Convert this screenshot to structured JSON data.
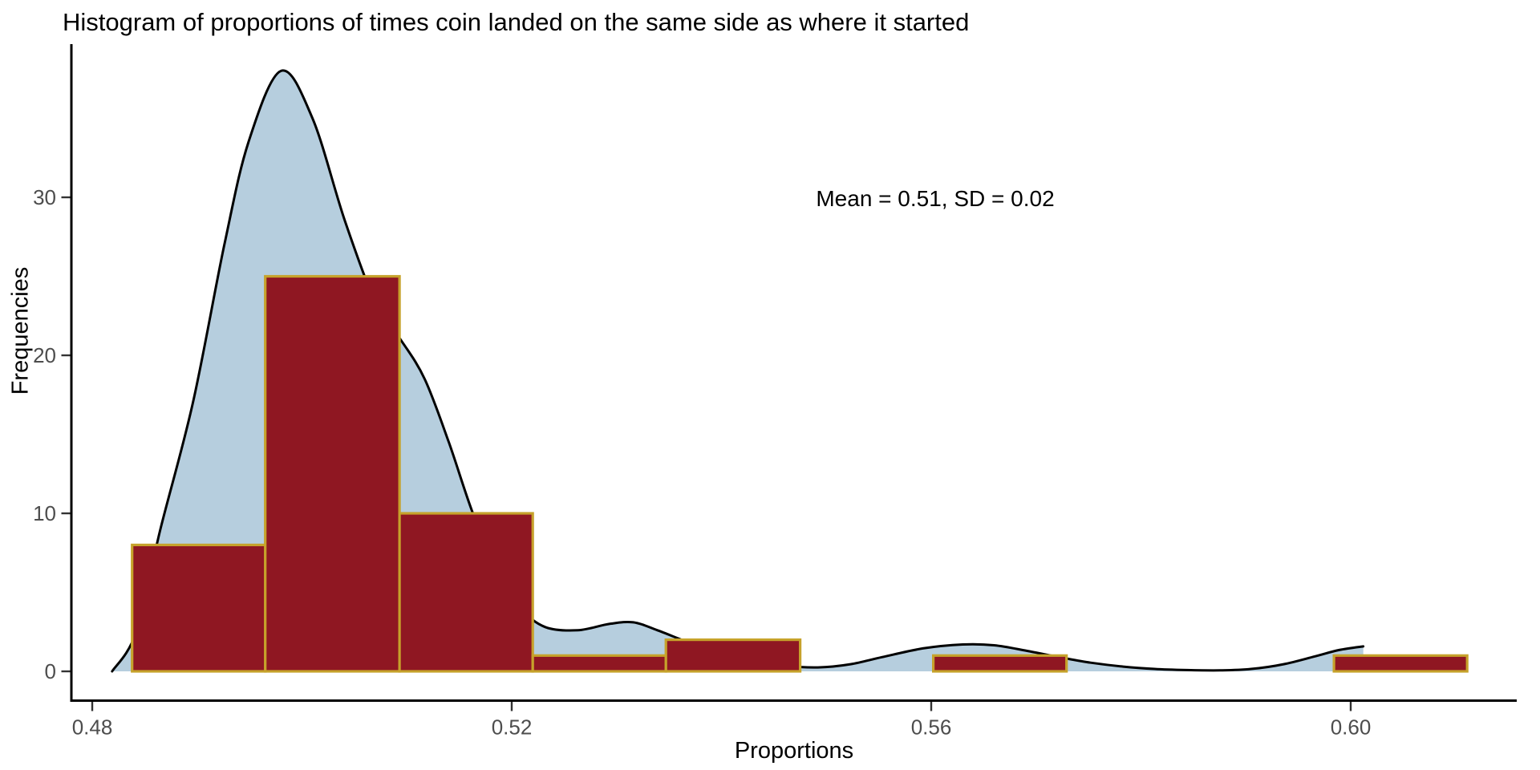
{
  "chart_data": {
    "type": "histogram",
    "title": "Histogram of proportions of times coin landed on the same side as where it started",
    "xlabel": "Proportions",
    "ylabel": "Frequencies",
    "annotation": "Mean = 0.51, SD = 0.02",
    "x_ticks": [
      {
        "value": 0.48,
        "label": "0.48"
      },
      {
        "value": 0.52,
        "label": "0.52"
      },
      {
        "value": 0.56,
        "label": "0.56"
      },
      {
        "value": 0.6,
        "label": "0.60"
      }
    ],
    "y_ticks": [
      {
        "value": 0,
        "label": "0"
      },
      {
        "value": 10,
        "label": "10"
      },
      {
        "value": 20,
        "label": "20"
      },
      {
        "value": 30,
        "label": "30"
      }
    ],
    "xlim": [
      0.478,
      0.616
    ],
    "ylim": [
      0,
      39.5
    ],
    "grid": "off",
    "legend": "none",
    "bins": {
      "edges": [
        0.4838,
        0.4965,
        0.5093,
        0.522,
        0.5347,
        0.5475,
        0.5602,
        0.5729,
        0.5857,
        0.5984,
        0.6111
      ],
      "counts": [
        8,
        25,
        10,
        1,
        2,
        0,
        1,
        0,
        0,
        1
      ]
    },
    "density_curve": [
      [
        0.4819,
        0.0
      ],
      [
        0.4842,
        2.5
      ],
      [
        0.4865,
        9.0
      ],
      [
        0.4896,
        17.0
      ],
      [
        0.4926,
        27.0
      ],
      [
        0.4949,
        33.5
      ],
      [
        0.498,
        38.0
      ],
      [
        0.501,
        35.0
      ],
      [
        0.5041,
        28.5
      ],
      [
        0.5072,
        23.0
      ],
      [
        0.5094,
        21.0
      ],
      [
        0.5117,
        18.5
      ],
      [
        0.514,
        14.5
      ],
      [
        0.5163,
        10.0
      ],
      [
        0.5186,
        6.5
      ],
      [
        0.5209,
        4.0
      ],
      [
        0.5232,
        2.8
      ],
      [
        0.5263,
        2.6
      ],
      [
        0.5293,
        3.0
      ],
      [
        0.5316,
        3.1
      ],
      [
        0.5339,
        2.6
      ],
      [
        0.537,
        1.8
      ],
      [
        0.54,
        1.2
      ],
      [
        0.5431,
        0.7
      ],
      [
        0.5462,
        0.35
      ],
      [
        0.5492,
        0.25
      ],
      [
        0.5523,
        0.45
      ],
      [
        0.5553,
        0.9
      ],
      [
        0.5592,
        1.45
      ],
      [
        0.563,
        1.7
      ],
      [
        0.566,
        1.65
      ],
      [
        0.5691,
        1.3
      ],
      [
        0.5722,
        0.9
      ],
      [
        0.5752,
        0.55
      ],
      [
        0.5783,
        0.3
      ],
      [
        0.5813,
        0.15
      ],
      [
        0.5844,
        0.08
      ],
      [
        0.5875,
        0.06
      ],
      [
        0.5905,
        0.15
      ],
      [
        0.5936,
        0.45
      ],
      [
        0.5966,
        0.95
      ],
      [
        0.5989,
        1.35
      ],
      [
        0.6012,
        1.58
      ]
    ],
    "colors": {
      "bar_fill": "#8F1722",
      "bar_border": "#C6A22B",
      "density_fill": "#B6CEDE",
      "density_line": "#000000",
      "axis_line": "#000000",
      "tick_mark": "#333333",
      "tick_label": "#4D4D4D"
    }
  }
}
